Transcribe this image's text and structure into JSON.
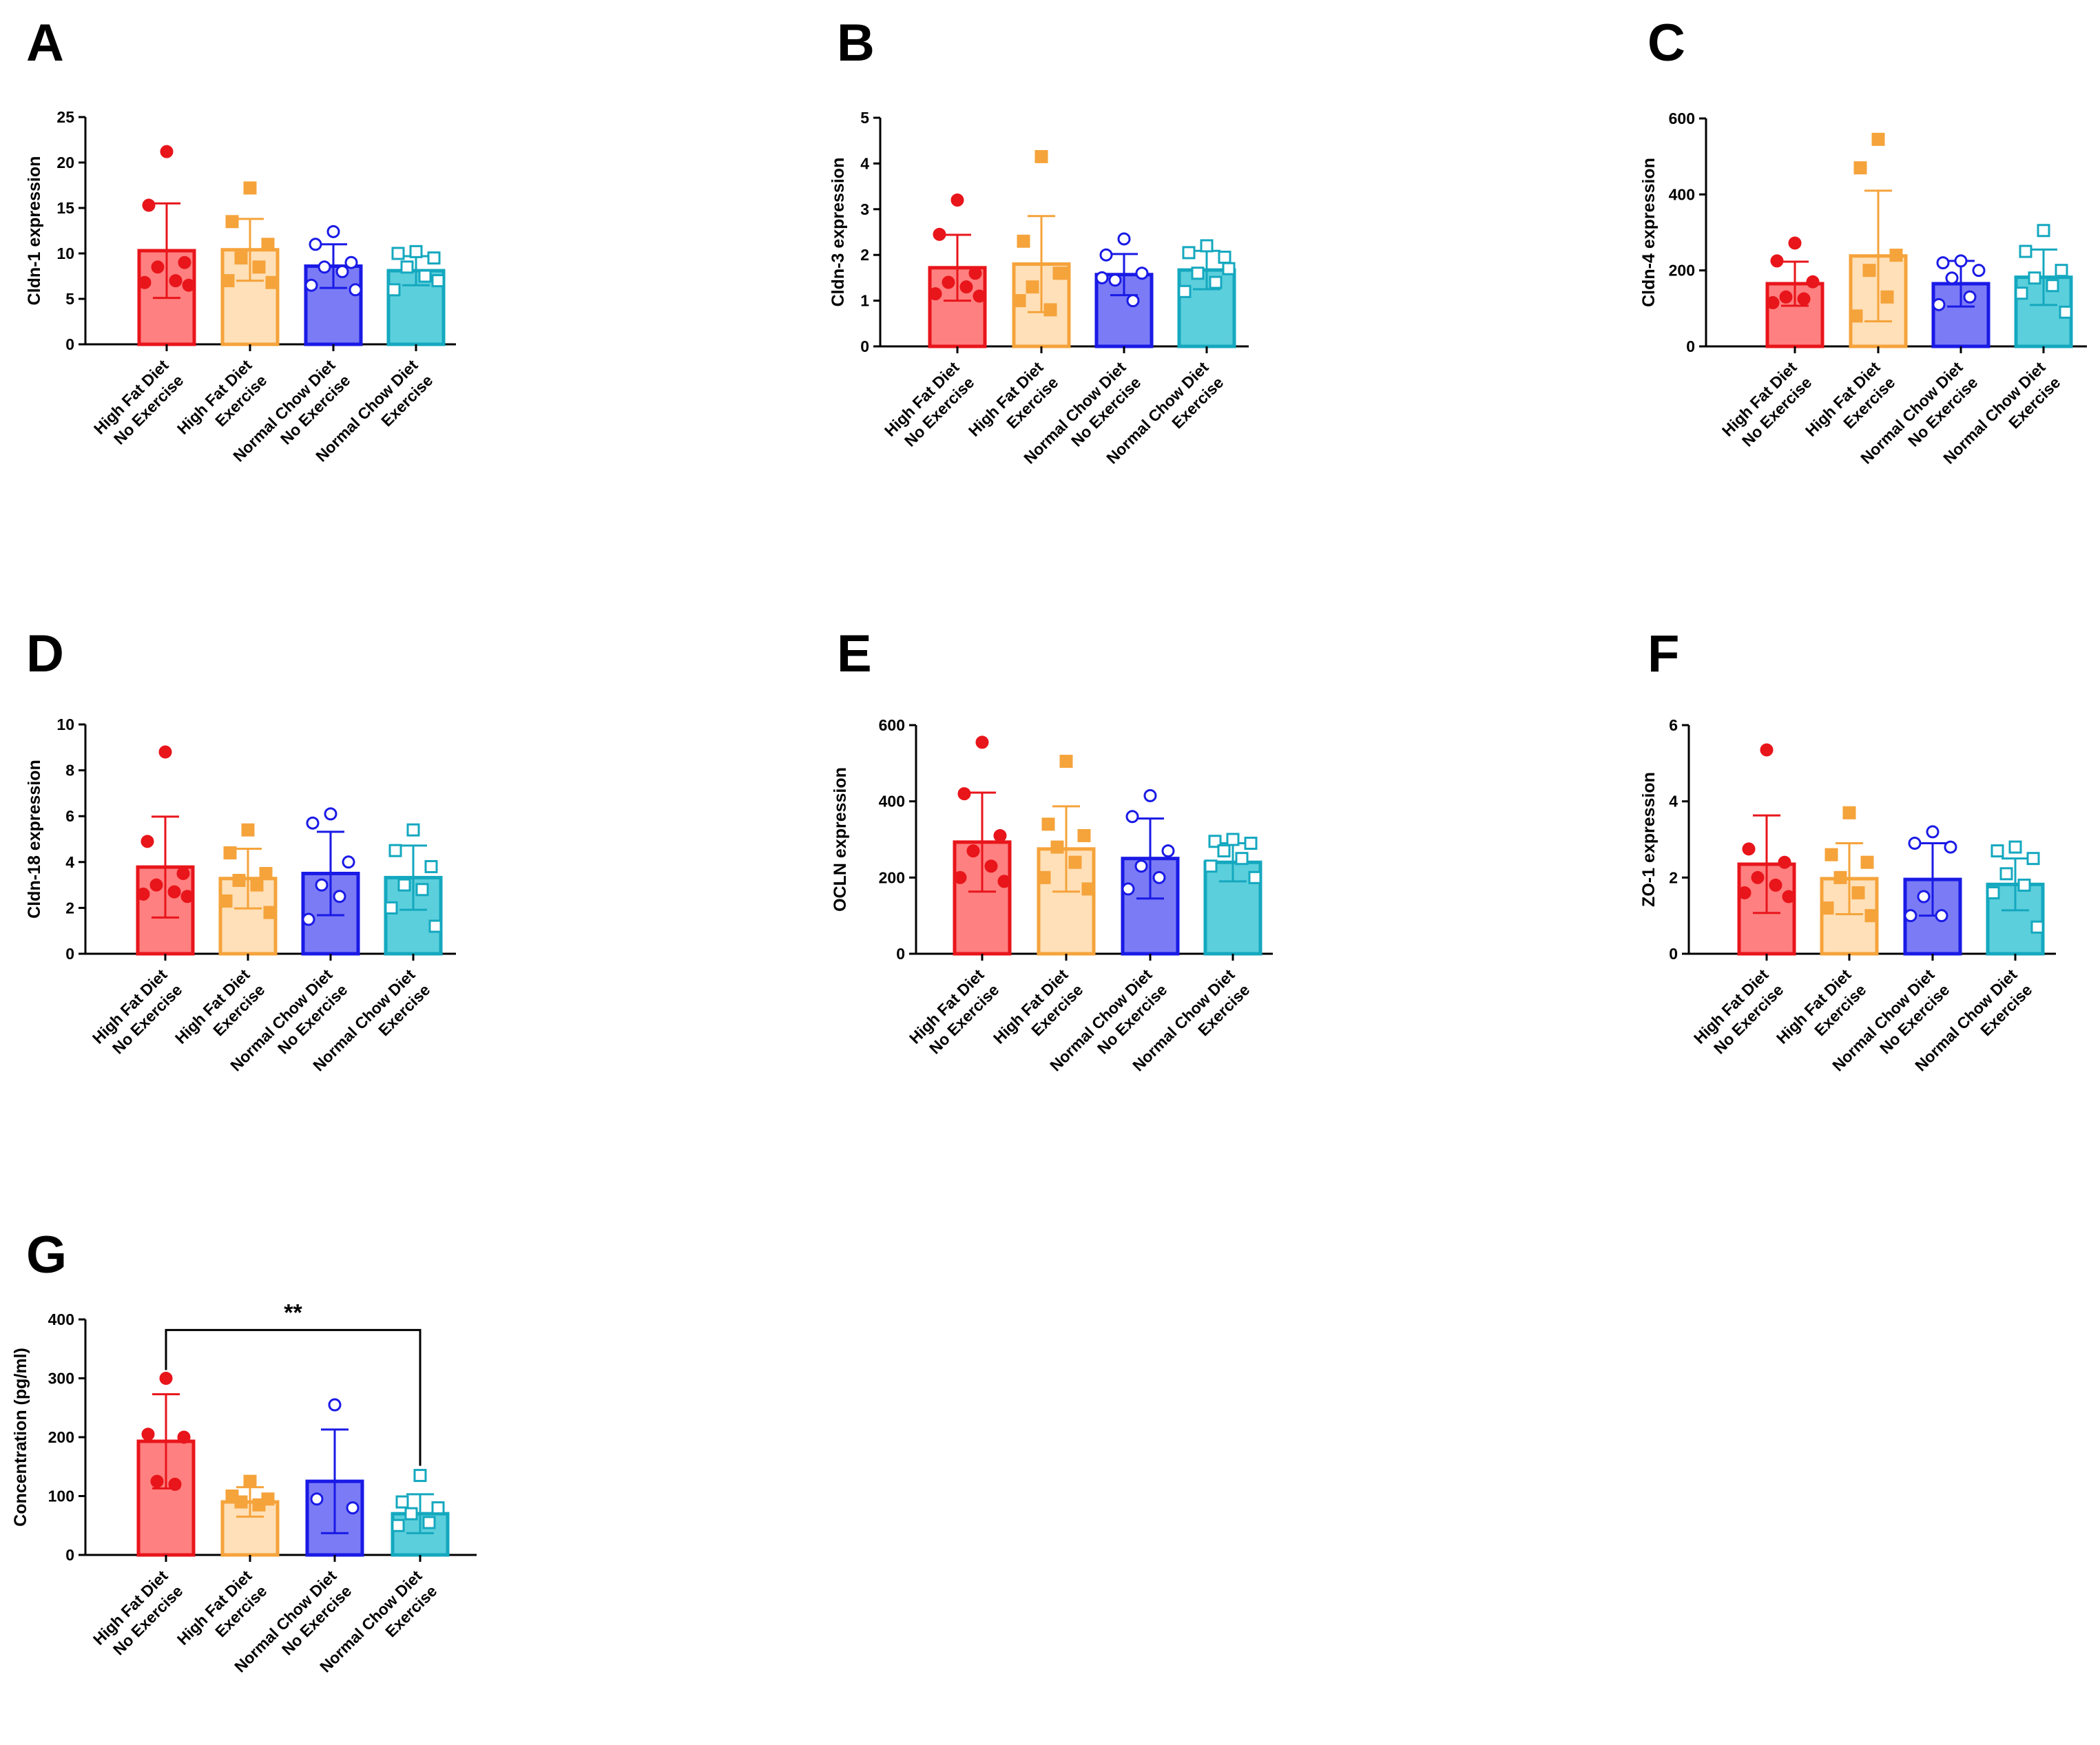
{
  "figure": {
    "categories": [
      [
        "High Fat Diet",
        "No Exercise"
      ],
      [
        "High Fat Diet",
        "Exercise"
      ],
      [
        "Normal Chow Diet",
        "No Exercise"
      ],
      [
        "Normal Chow Diet",
        "Exercise"
      ]
    ],
    "group_styles": [
      {
        "color": "#e8151b",
        "fill": "#ff8080",
        "marker": "filled-circle"
      },
      {
        "color": "#f5a33b",
        "fill": "#ffe0b8",
        "marker": "filled-square"
      },
      {
        "color": "#1a1ae6",
        "fill": "#7b7bf5",
        "marker": "open-circle"
      },
      {
        "color": "#14a8bf",
        "fill": "#5ccfdc",
        "marker": "open-square"
      }
    ]
  },
  "chart_data": [
    {
      "type": "bar",
      "panel": "A",
      "ylabel": "Cldn-1 expression",
      "ylim": [
        0,
        25
      ],
      "yticks": [
        "0",
        "5",
        "10",
        "15",
        "20",
        "25"
      ],
      "means": [
        10.3,
        10.4,
        8.6,
        8.1
      ],
      "sd": [
        5.2,
        3.4,
        2.4,
        1.6
      ],
      "points": [
        [
          21.2,
          15.3,
          9.0,
          8.5,
          7.0,
          6.8,
          6.5
        ],
        [
          17.2,
          13.5,
          11.0,
          9.5,
          8.5,
          7.0,
          6.8
        ],
        [
          12.4,
          11.0,
          9.0,
          8.5,
          8.0,
          6.5,
          6.0
        ],
        [
          10.2,
          10.0,
          9.5,
          8.5,
          7.5,
          6.0,
          7.0
        ]
      ]
    },
    {
      "type": "bar",
      "panel": "B",
      "ylabel": "Cldn-3 expression",
      "ylim": [
        0,
        5
      ],
      "yticks": [
        "0",
        "1",
        "2",
        "3",
        "4",
        "5"
      ],
      "means": [
        1.72,
        1.8,
        1.57,
        1.67
      ],
      "sd": [
        0.72,
        1.05,
        0.45,
        0.42
      ],
      "points": [
        [
          3.2,
          2.45,
          1.6,
          1.4,
          1.3,
          1.15,
          1.1
        ],
        [
          4.15,
          2.3,
          1.6,
          1.3,
          0.8,
          1.0,
          1.6
        ],
        [
          2.35,
          2.0,
          1.6,
          1.45,
          1.0,
          1.5
        ],
        [
          2.2,
          2.05,
          1.95,
          1.6,
          1.4,
          1.2,
          1.7
        ]
      ]
    },
    {
      "type": "bar",
      "panel": "C",
      "ylabel": "Cldn-4 expression",
      "ylim": [
        0,
        600
      ],
      "yticks": [
        "0",
        "200",
        "400",
        "600"
      ],
      "means": [
        165,
        238,
        165,
        182
      ],
      "sd": [
        58,
        172,
        60,
        73
      ],
      "points": [
        [
          272,
          225,
          170,
          130,
          125,
          115
        ],
        [
          545,
          470,
          240,
          200,
          130,
          80
        ],
        [
          225,
          220,
          200,
          180,
          130,
          110
        ],
        [
          305,
          250,
          200,
          180,
          160,
          140,
          90
        ]
      ]
    },
    {
      "type": "bar",
      "panel": "D",
      "ylabel": "Cldn-18 expression",
      "ylim": [
        0,
        10
      ],
      "yticks": [
        "0",
        "2",
        "4",
        "6",
        "8",
        "10"
      ],
      "means": [
        3.78,
        3.28,
        3.5,
        3.32
      ],
      "sd": [
        2.2,
        1.3,
        1.82,
        1.4
      ],
      "points": [
        [
          8.8,
          4.9,
          3.5,
          3.0,
          2.7,
          2.6,
          2.5
        ],
        [
          5.4,
          4.4,
          3.5,
          3.2,
          3.0,
          2.3,
          1.8
        ],
        [
          6.1,
          5.7,
          4.0,
          3.0,
          2.5,
          1.5
        ],
        [
          5.4,
          4.5,
          3.8,
          3.0,
          2.8,
          2.0,
          1.2
        ]
      ]
    },
    {
      "type": "bar",
      "panel": "E",
      "ylabel": "OCLN expression",
      "ylim": [
        0,
        600
      ],
      "yticks": [
        "0",
        "200",
        "400",
        "600"
      ],
      "means": [
        293,
        275,
        250,
        240
      ],
      "sd": [
        130,
        112,
        105,
        50
      ],
      "points": [
        [
          555,
          420,
          310,
          270,
          230,
          200,
          190
        ],
        [
          505,
          340,
          310,
          280,
          240,
          200,
          170
        ],
        [
          415,
          360,
          270,
          230,
          200,
          170
        ],
        [
          300,
          295,
          290,
          270,
          250,
          230,
          200
        ]
      ]
    },
    {
      "type": "bar",
      "panel": "F",
      "ylabel": "ZO-1 expression",
      "ylim": [
        0,
        6
      ],
      "yticks": [
        "0",
        "2",
        "4",
        "6"
      ],
      "means": [
        2.35,
        1.97,
        1.95,
        1.82
      ],
      "sd": [
        1.28,
        0.93,
        0.95,
        0.68
      ],
      "points": [
        [
          5.35,
          2.75,
          2.4,
          2.0,
          1.8,
          1.6,
          1.5
        ],
        [
          3.7,
          2.6,
          2.4,
          2.0,
          1.6,
          1.2,
          1.0
        ],
        [
          3.2,
          2.9,
          2.8,
          1.5,
          1.0,
          1.0
        ],
        [
          2.8,
          2.7,
          2.5,
          2.1,
          1.8,
          1.6,
          0.7
        ]
      ]
    },
    {
      "type": "bar",
      "panel": "G",
      "ylabel": "Concentration (pg/ml)",
      "ylim": [
        0,
        400
      ],
      "yticks": [
        "0",
        "100",
        "200",
        "300",
        "400"
      ],
      "means": [
        193,
        90,
        125,
        70
      ],
      "sd": [
        80,
        25,
        88,
        33
      ],
      "points": [
        [
          300,
          205,
          200,
          125,
          120
        ],
        [
          125,
          100,
          95,
          90,
          85
        ],
        [
          255,
          95,
          80
        ],
        [
          135,
          90,
          80,
          70,
          55,
          50
        ]
      ],
      "significance": {
        "label": "**",
        "from": 0,
        "to": 3
      }
    }
  ]
}
